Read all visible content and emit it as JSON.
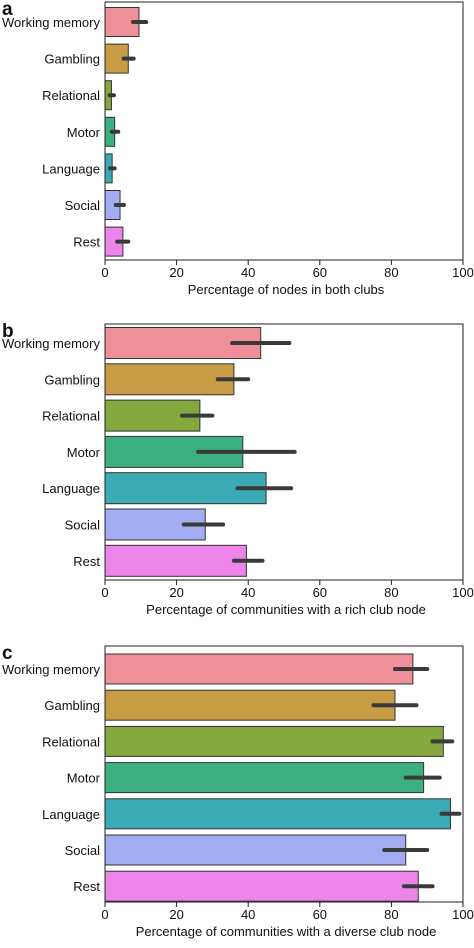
{
  "figure": {
    "colors": {
      "Working memory": "#ef8f9a",
      "Gambling": "#c89b45",
      "Relational": "#84a83d",
      "Motor": "#3db081",
      "Language": "#3aabb4",
      "Social": "#a3acf0",
      "Rest": "#ec84ea",
      "error_bar": "#3a3a3a"
    }
  },
  "chart_data": [
    {
      "panel": "a",
      "type": "bar",
      "orientation": "horizontal",
      "categories": [
        "Working memory",
        "Gambling",
        "Relational",
        "Motor",
        "Language",
        "Social",
        "Rest"
      ],
      "values": [
        9.5,
        6.5,
        1.8,
        2.7,
        2.0,
        4.2,
        5.0
      ],
      "error_low": [
        7.8,
        5.2,
        1.3,
        1.9,
        1.4,
        3.0,
        3.4
      ],
      "error_high": [
        11.5,
        8.0,
        2.5,
        3.7,
        2.7,
        5.3,
        6.5
      ],
      "xlabel": "Percentage of nodes in both clubs",
      "xlim": [
        0,
        100
      ],
      "xticks": [
        "0",
        "20",
        "40",
        "60",
        "80",
        "100"
      ]
    },
    {
      "panel": "b",
      "type": "bar",
      "orientation": "horizontal",
      "categories": [
        "Working memory",
        "Gambling",
        "Relational",
        "Motor",
        "Language",
        "Social",
        "Rest"
      ],
      "values": [
        43.5,
        36.0,
        26.5,
        38.5,
        45.0,
        28.0,
        39.5
      ],
      "error_low": [
        35.5,
        31.5,
        21.5,
        26.0,
        37.0,
        22.0,
        36.0
      ],
      "error_high": [
        51.5,
        40.0,
        30.0,
        53.0,
        52.0,
        33.0,
        44.0
      ],
      "xlabel": "Percentage of communities with a rich club node",
      "xlim": [
        0,
        100
      ],
      "xticks": [
        "0",
        "20",
        "40",
        "60",
        "80",
        "100"
      ]
    },
    {
      "panel": "c",
      "type": "bar",
      "orientation": "horizontal",
      "categories": [
        "Working memory",
        "Gambling",
        "Relational",
        "Motor",
        "Language",
        "Social",
        "Rest"
      ],
      "values": [
        86.0,
        81.0,
        94.5,
        89.0,
        96.5,
        84.0,
        87.5
      ],
      "error_low": [
        81.0,
        75.0,
        91.5,
        84.0,
        94.0,
        78.0,
        83.5
      ],
      "error_high": [
        90.0,
        87.0,
        97.0,
        93.5,
        99.0,
        90.0,
        91.5
      ],
      "xlabel": "Percentage of communities with a diverse club node",
      "xlim": [
        0,
        100
      ],
      "xticks": [
        "0",
        "20",
        "40",
        "60",
        "80",
        "100"
      ]
    }
  ]
}
